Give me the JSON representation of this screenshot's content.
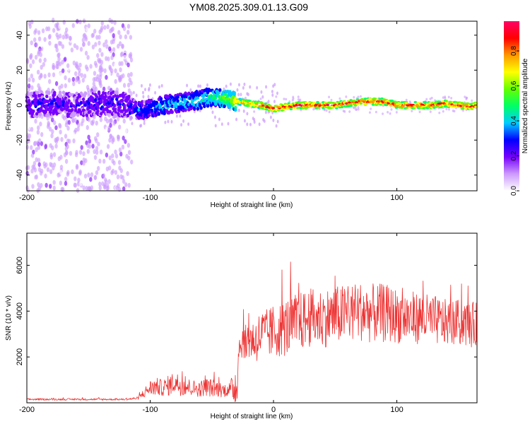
{
  "title": "YM08.2025.309.01.13.G09",
  "chart_data": [
    {
      "type": "heatmap",
      "xlabel": "Height of straight line (km)",
      "ylabel": "Frequency (Hz)",
      "xlim": [
        -200,
        165
      ],
      "ylim": [
        -49,
        48
      ],
      "xticks": [
        -200,
        -100,
        0,
        100
      ],
      "yticks": [
        -40,
        -20,
        0,
        20,
        40
      ],
      "colorbar": {
        "label": "Normalized spectral amplitude",
        "range": [
          0,
          0.97
        ],
        "ticks": [
          0.0,
          0.2,
          0.4,
          0.6,
          0.8
        ],
        "tick_labels": [
          "0.0",
          "0.2",
          "0.4",
          "0.6",
          "0.8"
        ],
        "colormap": [
          "#ffffff",
          "#cc99ff",
          "#7700ff",
          "#0000ff",
          "#00ccff",
          "#00ff66",
          "#66ff00",
          "#ffff00",
          "#ff9900",
          "#ff0000",
          "#ff0066"
        ]
      },
      "ridge": {
        "x": [
          -200,
          -180,
          -160,
          -140,
          -120,
          -110,
          -100,
          -90,
          -80,
          -70,
          -60,
          -50,
          -45,
          -40,
          -35,
          -30,
          -20,
          -10,
          0,
          10,
          20,
          30,
          40,
          50,
          60,
          70,
          80,
          90,
          100,
          110,
          120,
          130,
          140,
          150,
          160,
          165
        ],
        "freq": [
          0,
          1,
          0,
          1,
          0,
          -3,
          -2,
          0,
          1,
          2,
          3,
          5,
          4,
          4,
          3,
          2,
          1,
          0,
          -2,
          -1,
          0,
          0,
          0,
          0,
          1,
          2,
          2,
          2,
          0,
          0,
          0,
          0,
          1,
          0,
          -1,
          0
        ],
        "amplitude": [
          0.25,
          0.25,
          0.22,
          0.25,
          0.25,
          0.3,
          0.35,
          0.38,
          0.4,
          0.42,
          0.45,
          0.5,
          0.55,
          0.55,
          0.6,
          0.75,
          0.85,
          0.9,
          0.9,
          0.92,
          0.92,
          0.92,
          0.92,
          0.92,
          0.92,
          0.92,
          0.92,
          0.92,
          0.92,
          0.92,
          0.92,
          0.92,
          0.92,
          0.92,
          0.92,
          0.92
        ]
      }
    },
    {
      "type": "line",
      "xlabel": "Height of straight line (km)",
      "ylabel": "SNR (10 * v/v)",
      "xlim": [
        -200,
        165
      ],
      "ylim": [
        0,
        7400
      ],
      "xticks": [
        -200,
        -100,
        0,
        100
      ],
      "yticks": [
        2000,
        4000,
        6000
      ],
      "series": [
        {
          "name": "SNR",
          "color": "#ee3333",
          "x": [
            -200,
            -180,
            -160,
            -140,
            -120,
            -110,
            -100,
            -95,
            -90,
            -85,
            -80,
            -75,
            -70,
            -65,
            -60,
            -55,
            -50,
            -45,
            -40,
            -35,
            -30,
            -28,
            -25,
            -22,
            -20,
            -15,
            -10,
            -5,
            0,
            5,
            10,
            15,
            20,
            25,
            30,
            40,
            50,
            60,
            70,
            80,
            90,
            100,
            110,
            120,
            130,
            140,
            150,
            160,
            165
          ],
          "y": [
            150,
            150,
            150,
            150,
            150,
            200,
            650,
            700,
            650,
            750,
            900,
            750,
            700,
            650,
            600,
            700,
            650,
            600,
            550,
            600,
            800,
            2400,
            2700,
            2600,
            2800,
            2700,
            3000,
            3000,
            3100,
            3200,
            3300,
            3400,
            3500,
            3600,
            3700,
            3700,
            3800,
            3900,
            4000,
            3900,
            3900,
            3800,
            3700,
            3700,
            3600,
            3500,
            3500,
            3400,
            3400
          ],
          "jitter": [
            40,
            40,
            40,
            40,
            40,
            60,
            350,
            400,
            350,
            450,
            500,
            450,
            400,
            350,
            350,
            400,
            400,
            350,
            300,
            300,
            1200,
            600,
            700,
            800,
            900,
            1000,
            1100,
            1100,
            1200,
            1200,
            1300,
            1300,
            1300,
            1300,
            1300,
            1300,
            1300,
            1300,
            1300,
            1300,
            1300,
            1200,
            1200,
            1100,
            1100,
            1000,
            1000,
            1000,
            1000
          ]
        }
      ]
    }
  ]
}
